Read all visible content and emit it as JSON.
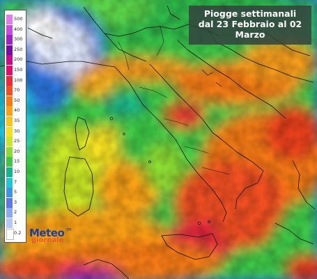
{
  "title": {
    "line1": "Piogge settimanali",
    "line2": "dal 23 Febbraio al 02",
    "line3": "Marzo"
  },
  "legend": {
    "items": [
      {
        "label": "500",
        "color": "#e07cf0"
      },
      {
        "label": "400",
        "color": "#c84ce0"
      },
      {
        "label": "300",
        "color": "#a020c8"
      },
      {
        "label": "250",
        "color": "#7a0aa8"
      },
      {
        "label": "200",
        "color": "#c80a8c"
      },
      {
        "label": "150",
        "color": "#e0106a"
      },
      {
        "label": "100",
        "color": "#f0283c"
      },
      {
        "label": "70",
        "color": "#f05020"
      },
      {
        "label": "50",
        "color": "#f57a14"
      },
      {
        "label": "40",
        "color": "#f8a016"
      },
      {
        "label": "35",
        "color": "#fac21a"
      },
      {
        "label": "30",
        "color": "#f5e020"
      },
      {
        "label": "25",
        "color": "#c8e628"
      },
      {
        "label": "20",
        "color": "#8cdc32"
      },
      {
        "label": "15",
        "color": "#3cc846"
      },
      {
        "label": "10",
        "color": "#14b48c"
      },
      {
        "label": "7",
        "color": "#1ec8d2"
      },
      {
        "label": "5",
        "color": "#3c96e6"
      },
      {
        "label": "3",
        "color": "#5a78e6"
      },
      {
        "label": "2",
        "color": "#8caaf0"
      },
      {
        "label": "1",
        "color": "#b4c8f8"
      },
      {
        "label": "0.2",
        "color": "#ffffff"
      }
    ]
  },
  "logo": {
    "line1": "Meteo",
    "line2": "giornale",
    "tm": "TM"
  },
  "colors": {
    "sea": "#1a5ccc",
    "heavy_rain": "#e03a20",
    "moderate_rain": "#f29a1c",
    "light_rain": "#3cc846",
    "snow_dry": "#dfe6fb",
    "title_box_bg": "#344240",
    "logo_blue": "#1d3f9c",
    "logo_orange": "#e3592b"
  }
}
